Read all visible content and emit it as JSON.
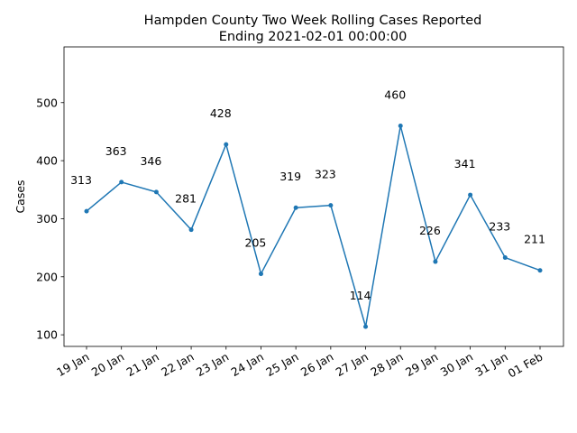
{
  "chart_data": {
    "type": "line",
    "title_line1": "Hampden County Two Week Rolling Cases Reported",
    "title_line2": "Ending 2021-02-01 00:00:00",
    "xlabel": "",
    "ylabel": "Cases",
    "categories": [
      "19 Jan",
      "20 Jan",
      "21 Jan",
      "22 Jan",
      "23 Jan",
      "24 Jan",
      "25 Jan",
      "26 Jan",
      "27 Jan",
      "28 Jan",
      "29 Jan",
      "30 Jan",
      "31 Jan",
      "01 Feb"
    ],
    "values": [
      313,
      363,
      346,
      281,
      428,
      205,
      319,
      323,
      114,
      460,
      226,
      341,
      233,
      211
    ],
    "ylim": [
      80,
      596
    ],
    "yticks": [
      100,
      200,
      300,
      400,
      500
    ],
    "grid": false,
    "legend": "none",
    "line_color": "#1f77b4"
  }
}
